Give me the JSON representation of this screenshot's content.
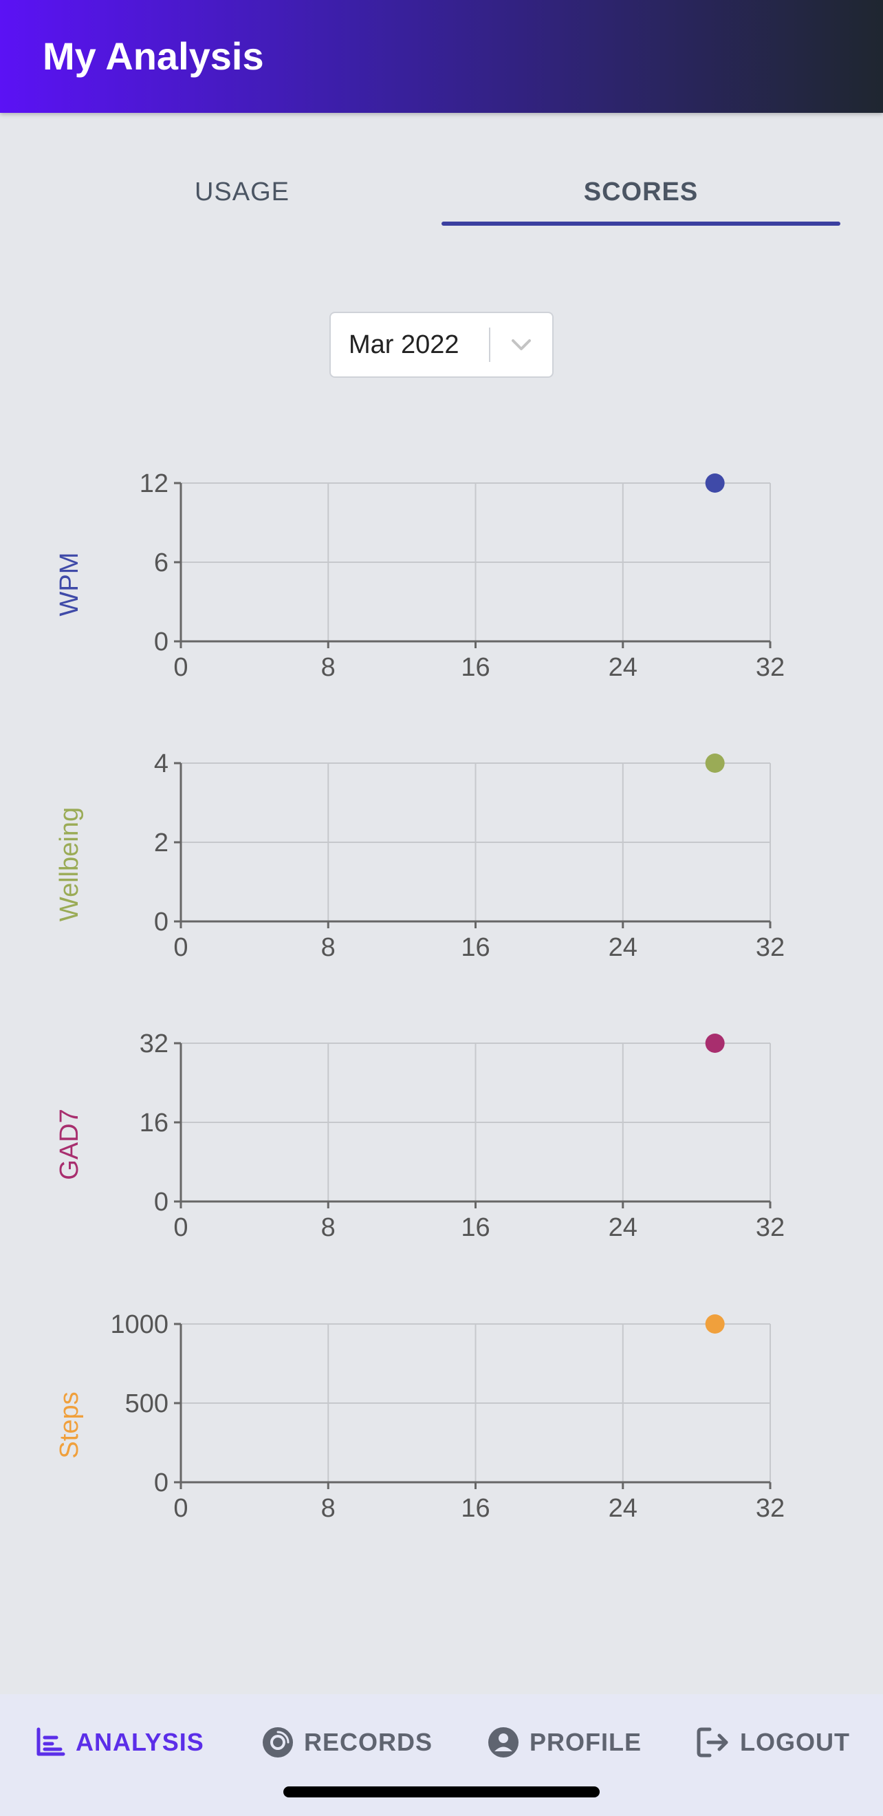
{
  "header": {
    "title": "My Analysis"
  },
  "tabs": [
    {
      "label": "USAGE",
      "active": false
    },
    {
      "label": "SCORES",
      "active": true
    }
  ],
  "month_select": {
    "value": "Mar 2022",
    "icon": "chevron-down-icon"
  },
  "chart_data": [
    {
      "type": "scatter",
      "ylabel": "WPM",
      "color": "#3f4aa8",
      "x_ticks": [
        "0",
        "8",
        "16",
        "24",
        "32"
      ],
      "y_ticks": [
        "0",
        "6",
        "12"
      ],
      "xlim": [
        0,
        32
      ],
      "ylim": [
        0,
        12
      ],
      "points": [
        {
          "x": 29,
          "y": 12
        }
      ],
      "grid": true
    },
    {
      "type": "scatter",
      "ylabel": "Wellbeing",
      "color": "#9aab56",
      "x_ticks": [
        "0",
        "8",
        "16",
        "24",
        "32"
      ],
      "y_ticks": [
        "0",
        "2",
        "4"
      ],
      "xlim": [
        0,
        32
      ],
      "ylim": [
        0,
        4
      ],
      "points": [
        {
          "x": 29,
          "y": 4
        }
      ],
      "grid": true
    },
    {
      "type": "scatter",
      "ylabel": "GAD7",
      "color": "#a82e6e",
      "x_ticks": [
        "0",
        "8",
        "16",
        "24",
        "32"
      ],
      "y_ticks": [
        "0",
        "16",
        "32"
      ],
      "xlim": [
        0,
        32
      ],
      "ylim": [
        0,
        32
      ],
      "points": [
        {
          "x": 29,
          "y": 32
        }
      ],
      "grid": true
    },
    {
      "type": "scatter",
      "ylabel": "Steps",
      "color": "#f0a03c",
      "x_ticks": [
        "0",
        "8",
        "16",
        "24",
        "32"
      ],
      "y_ticks": [
        "0",
        "500",
        "1000"
      ],
      "xlim": [
        0,
        32
      ],
      "ylim": [
        0,
        1000
      ],
      "points": [
        {
          "x": 29,
          "y": 1000
        }
      ],
      "grid": true
    }
  ],
  "bottom_nav": [
    {
      "label": "ANALYSIS",
      "icon": "chart-icon",
      "active": true
    },
    {
      "label": "RECORDS",
      "icon": "disc-icon",
      "active": false
    },
    {
      "label": "PROFILE",
      "icon": "user-circle-icon",
      "active": false
    },
    {
      "label": "LOGOUT",
      "icon": "logout-icon",
      "active": false
    }
  ],
  "colors": {
    "accent": "#5b2ee8",
    "tab_indicator": "#3a3fa0",
    "background": "#e5e7eb"
  }
}
